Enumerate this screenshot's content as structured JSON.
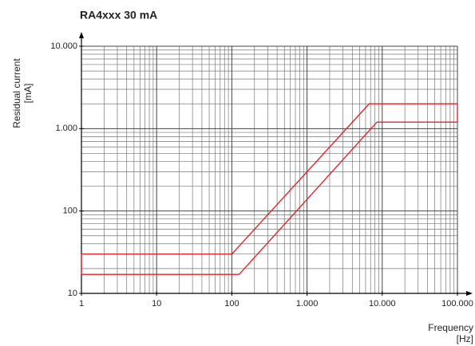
{
  "chart_data": {
    "type": "line",
    "title": "RA4xxx 30 mA",
    "y_label": [
      "Residual current",
      "[mA]"
    ],
    "x_label": [
      "Frequency",
      "[Hz]"
    ],
    "xscale": "log",
    "yscale": "log",
    "grid": true,
    "xlim": [
      1,
      100000
    ],
    "ylim": [
      10,
      10000
    ],
    "xticks": [
      1,
      10,
      100,
      {
        "value": 1000,
        "label": "1.000"
      },
      {
        "value": 10000,
        "label": "10.000"
      },
      {
        "value": 100000,
        "label": "100.000"
      }
    ],
    "yticks": [
      10,
      100,
      {
        "value": 1000,
        "label": "1.000"
      },
      {
        "value": 10000,
        "label": "10.000"
      }
    ],
    "series": [
      {
        "x": [
          1,
          100,
          6700,
          100000
        ],
        "values": [
          30,
          30,
          2000,
          2000
        ],
        "color": "#e0262b"
      },
      {
        "x": [
          1,
          125,
          8500,
          100000
        ],
        "values": [
          17,
          17,
          1200,
          1200
        ],
        "color": "#e0262b"
      }
    ]
  }
}
